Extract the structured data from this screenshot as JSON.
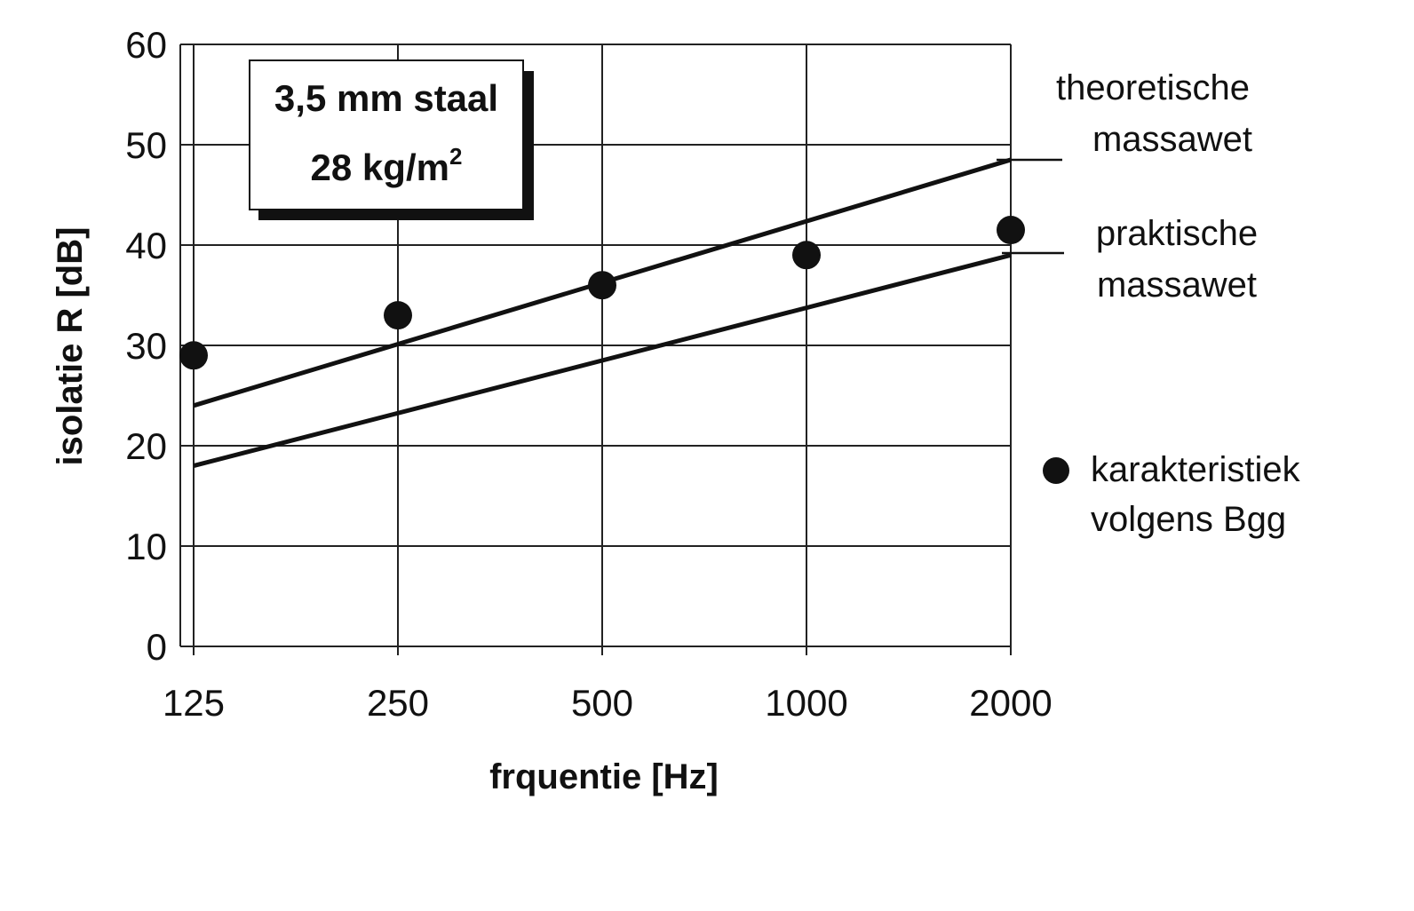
{
  "chart_data": {
    "type": "line",
    "title": "",
    "annotation": {
      "line1": "3,5 mm staal",
      "line2_prefix": "28 kg/m",
      "line2_sup": "2"
    },
    "xlabel": "frquentie  [Hz]",
    "ylabel": "isolatie  R  [dB]",
    "x_scale": "log2",
    "x": [
      125,
      250,
      500,
      1000,
      2000
    ],
    "x_tick_labels": [
      "125",
      "250",
      "500",
      "1000",
      "2000"
    ],
    "ylim": [
      0,
      60
    ],
    "y_ticks": [
      0,
      10,
      20,
      30,
      40,
      50,
      60
    ],
    "grid": true,
    "series": [
      {
        "name_lines": [
          "theoretische",
          "massawet"
        ],
        "style": "line",
        "start": [
          125,
          24
        ],
        "end": [
          2000,
          48.5
        ]
      },
      {
        "name_lines": [
          "praktische",
          "massawet"
        ],
        "style": "line",
        "start": [
          125,
          18
        ],
        "end": [
          2000,
          39
        ]
      },
      {
        "name_lines": [
          "karakteristiek",
          "volgens Bgg"
        ],
        "style": "marker",
        "values": [
          29,
          33,
          36,
          39,
          41.5
        ]
      }
    ],
    "legend_placement": "right"
  }
}
